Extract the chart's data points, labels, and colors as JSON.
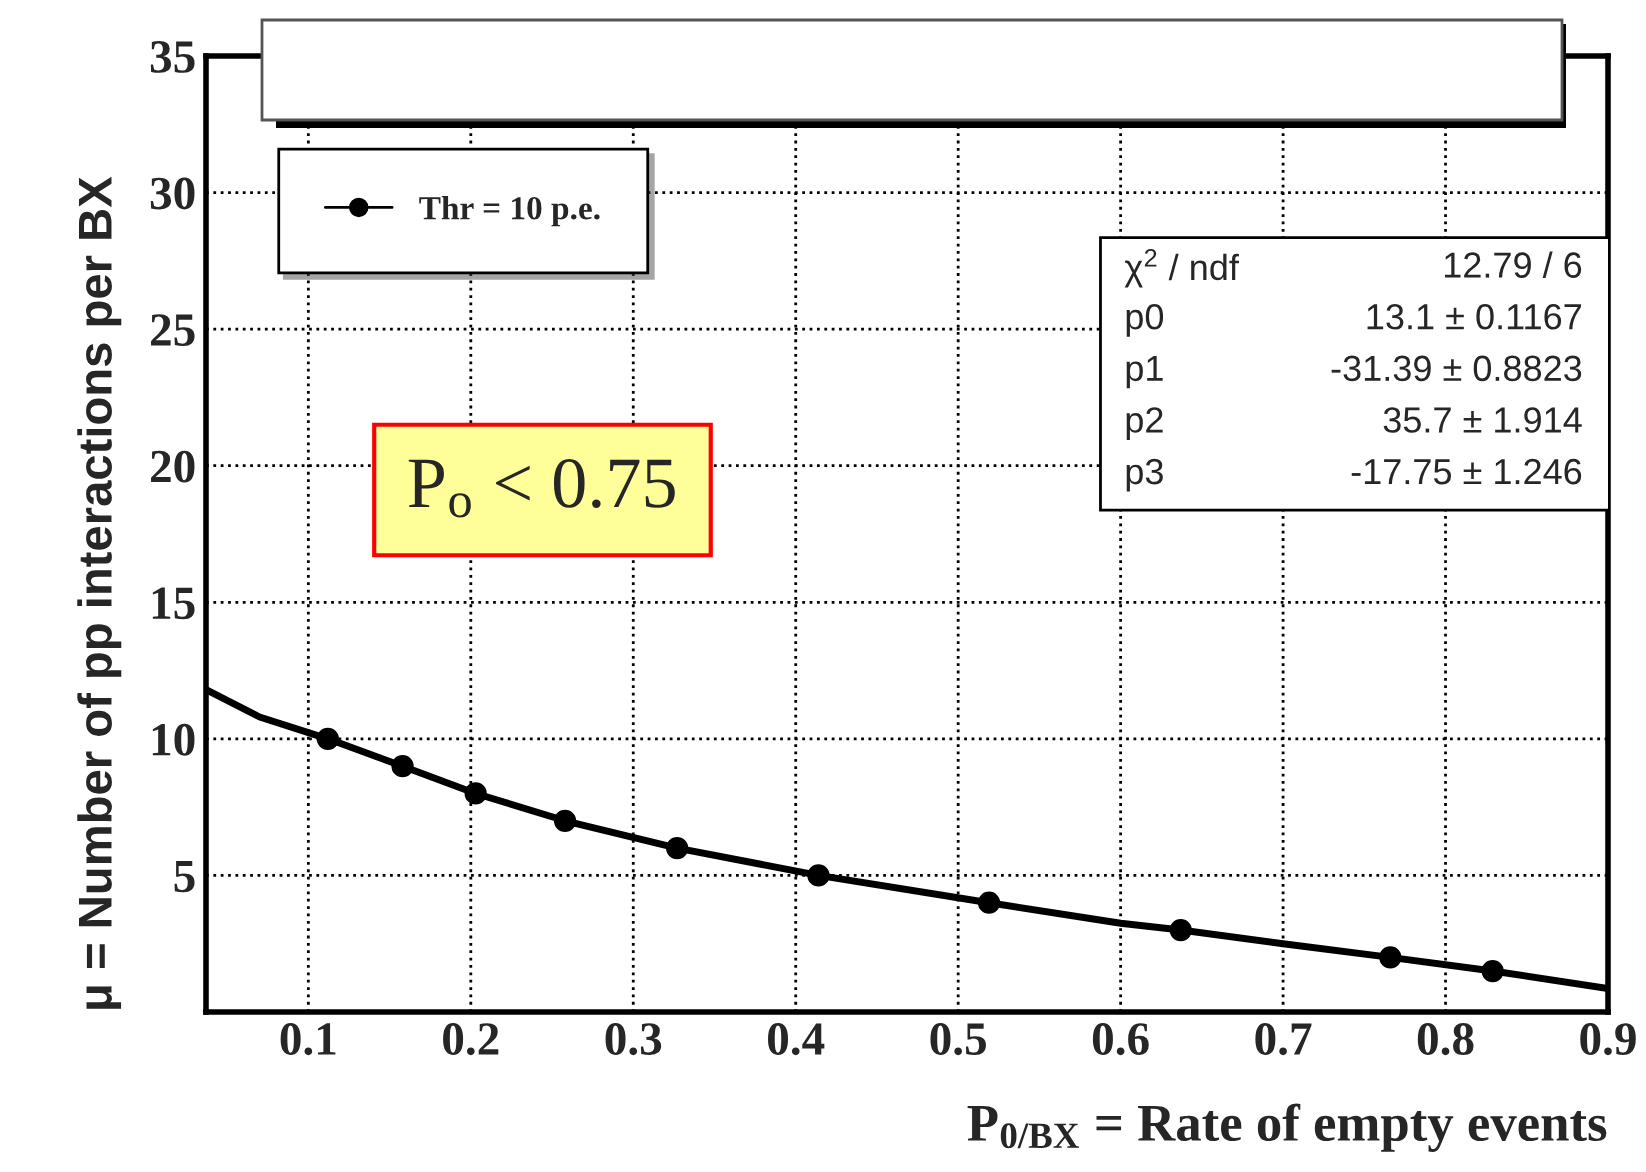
{
  "chart_data": {
    "type": "scatter",
    "xlabel": "P$_{0/BX}$ = Rate of empty events",
    "ylabel": "μ = Number of pp interactions per BX",
    "series": [
      {
        "name": "Thr = 10 p.e.",
        "color": "#000000",
        "marker": "circle",
        "x": [
          0.112,
          0.158,
          0.203,
          0.258,
          0.327,
          0.414,
          0.519,
          0.637,
          0.766,
          0.829
        ],
        "values": [
          10,
          9,
          8,
          7,
          6,
          5,
          4,
          3,
          2,
          1.5
        ]
      },
      {
        "type": "line",
        "color": "#000000",
        "line_style": "solid",
        "x": [
          0.037,
          0.07,
          0.112,
          0.158,
          0.203,
          0.258,
          0.327,
          0.414,
          0.519,
          0.6,
          0.637,
          0.7,
          0.766,
          0.829,
          0.9
        ],
        "values": [
          11.8,
          10.8,
          10,
          9,
          8,
          7,
          6,
          5,
          4,
          3.25,
          3.0,
          2.5,
          2.0,
          1.5,
          0.86
        ]
      }
    ],
    "xlim": [
      0.037,
      0.9
    ],
    "xticks": [
      0.1,
      0.2,
      0.3,
      0.4,
      0.5,
      0.6,
      0.7,
      0.8,
      0.9
    ],
    "ylim": [
      0,
      35
    ],
    "yticks": [
      5,
      10,
      15,
      20,
      25,
      30,
      35
    ],
    "grid": true,
    "legend": "top left",
    "annotations": [
      "P$_{o}$ < 0.75",
      "χ$^{2}$ / ndf",
      "12.79 / 6",
      "p0",
      "13.1 ± 0.1167",
      "p1",
      "-31.39 ± 0.8823",
      "p2",
      "35.7 ± 1.914",
      "p3",
      "-17.75 ± 1.246"
    ]
  }
}
